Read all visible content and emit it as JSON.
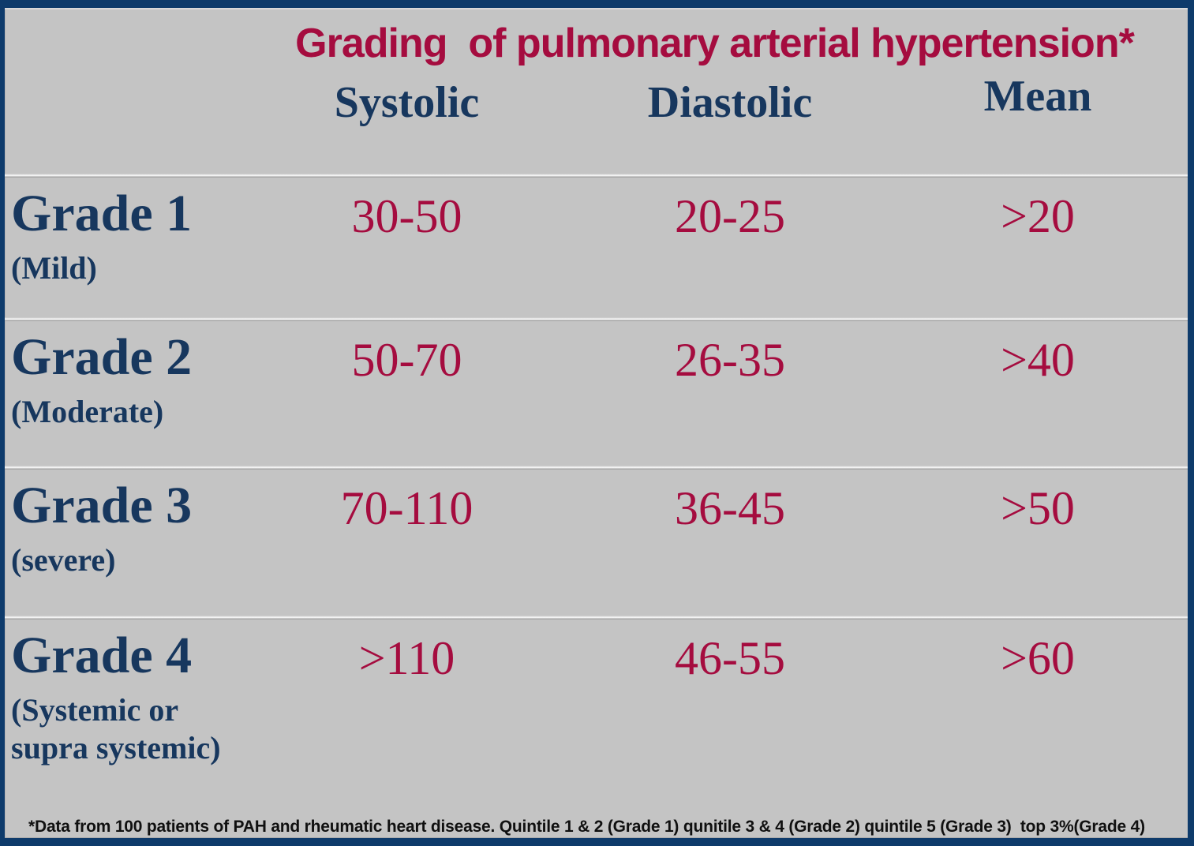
{
  "title": "Grading  of pulmonary arterial hypertension*",
  "columns": [
    "Systolic",
    "Diastolic",
    "Mean"
  ],
  "rows": [
    {
      "grade": "Grade 1",
      "qualifier": "(Mild)",
      "systolic": "30-50",
      "diastolic": "20-25",
      "mean": ">20"
    },
    {
      "grade": "Grade 2",
      "qualifier": "(Moderate)",
      "systolic": "50-70",
      "diastolic": "26-35",
      "mean": ">40"
    },
    {
      "grade": "Grade 3",
      "qualifier": "(severe)",
      "systolic": "70-110",
      "diastolic": "36-45",
      "mean": ">50"
    },
    {
      "grade": "Grade 4",
      "qualifier": "(Systemic or supra systemic)",
      "systolic": ">110",
      "diastolic": "46-55",
      "mean": ">60"
    }
  ],
  "footnote": "*Data from 100 patients of PAH and rheumatic heart disease. Quintile 1 & 2 (Grade 1) qunitile 3 & 4 (Grade 2) quintile 5 (Grade 3)  top 3%(Grade 4)",
  "colors": {
    "frame_navy": "#0E3B6B",
    "panel_gray": "#C4C4C4",
    "heading_navy": "#17375E",
    "title_crimson": "#A50C3F",
    "value_crimson": "#A50C3F",
    "footnote_black": "#101010"
  }
}
